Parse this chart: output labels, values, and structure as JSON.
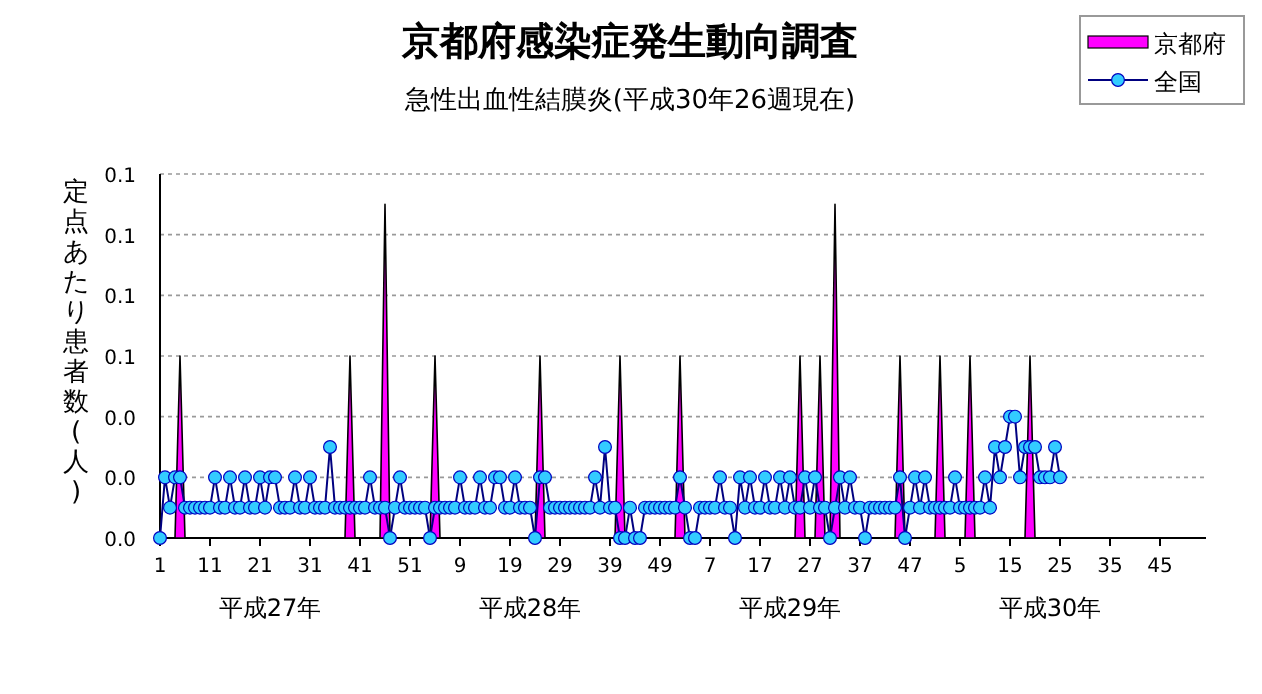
{
  "chart_data": {
    "type": "line",
    "title": "京都府感染症発生動向調査",
    "subtitle": "急性出血性結膜炎(平成30年26週現在)",
    "ylabel": "定点あたり患者数(人)",
    "annotations": [
      "平成27年",
      "平成28年",
      "平成29年",
      "平成30年"
    ],
    "categories": [
      "1",
      null,
      null,
      null,
      null,
      null,
      null,
      null,
      null,
      null,
      "11",
      null,
      null,
      null,
      null,
      null,
      null,
      null,
      null,
      null,
      "21",
      null,
      null,
      null,
      null,
      null,
      null,
      null,
      null,
      null,
      "31",
      null,
      null,
      null,
      null,
      null,
      null,
      null,
      null,
      null,
      "41",
      null,
      null,
      null,
      null,
      null,
      null,
      null,
      null,
      null,
      "51",
      null,
      null,
      null,
      null,
      null,
      null,
      null,
      null,
      null,
      "9",
      null,
      null,
      null,
      null,
      null,
      null,
      null,
      null,
      null,
      "19",
      null,
      null,
      null,
      null,
      null,
      null,
      null,
      null,
      null,
      "29",
      null,
      null,
      null,
      null,
      null,
      null,
      null,
      null,
      null,
      "39",
      null,
      null,
      null,
      null,
      null,
      null,
      null,
      null,
      null,
      "49",
      null,
      null,
      null,
      null,
      null,
      null,
      null,
      null,
      null,
      "7",
      null,
      null,
      null,
      null,
      null,
      null,
      null,
      null,
      null,
      "17",
      null,
      null,
      null,
      null,
      null,
      null,
      null,
      null,
      null,
      "27",
      null,
      null,
      null,
      null,
      null,
      null,
      null,
      null,
      null,
      "37",
      null,
      null,
      null,
      null,
      null,
      null,
      null,
      null,
      null,
      "47",
      null,
      null,
      null,
      null,
      null,
      null,
      null,
      null,
      null,
      "5",
      null,
      null,
      null,
      null,
      null,
      null,
      null,
      null,
      null,
      "15",
      null,
      null,
      null,
      null,
      null,
      null,
      null,
      null,
      null,
      "25",
      null,
      null,
      null,
      null,
      null,
      null,
      null,
      null,
      null,
      "35",
      null,
      null,
      null,
      null,
      null,
      null,
      null,
      null,
      null,
      "45",
      null,
      null,
      null,
      null,
      null,
      null,
      null
    ],
    "ylim": [
      0,
      0.12
    ],
    "yticks": [
      {
        "value": 0,
        "label": "0.0"
      },
      {
        "value": 0.02,
        "label": "0.0"
      },
      {
        "value": 0.04,
        "label": "0.0"
      },
      {
        "value": 0.06,
        "label": "0.1"
      },
      {
        "value": 0.08,
        "label": "0.1"
      },
      {
        "value": 0.1,
        "label": "0.1"
      },
      {
        "value": 0.12,
        "label": "0.1"
      }
    ],
    "grid": "y",
    "legend": "top right",
    "series": [
      {
        "name": "京都府",
        "type": "area",
        "color": "#ff00ff",
        "values": [
          0,
          0,
          0,
          0,
          0.06,
          0,
          0,
          0,
          0,
          0,
          0,
          0,
          0,
          0,
          0,
          0,
          0,
          0,
          0,
          0,
          0,
          0,
          0,
          0,
          0,
          0,
          0,
          0,
          0,
          0,
          0,
          0,
          0,
          0,
          0,
          0,
          0,
          0,
          0.06,
          0,
          0,
          0,
          0,
          0,
          0,
          0.11,
          0,
          0,
          0,
          0,
          0,
          0,
          0,
          0,
          0,
          0.06,
          0,
          0,
          0,
          0,
          0,
          0,
          0,
          0,
          0,
          0,
          0,
          0,
          0,
          0,
          0,
          0,
          0,
          0,
          0,
          0,
          0.06,
          0,
          0,
          0,
          0,
          0,
          0,
          0,
          0,
          0,
          0,
          0,
          0,
          0,
          0,
          0,
          0.06,
          0,
          0,
          0,
          0,
          0,
          0,
          0,
          0,
          0,
          0,
          0,
          0.06,
          0,
          0,
          0,
          0,
          0,
          0,
          0,
          0,
          0,
          0,
          0,
          0,
          0,
          0,
          0,
          0,
          0,
          0,
          0,
          0,
          0,
          0,
          0,
          0.06,
          0,
          0,
          0,
          0.06,
          0,
          0,
          0.11,
          0,
          0,
          0,
          0,
          0,
          0,
          0,
          0,
          0,
          0,
          0,
          0,
          0.06,
          0,
          0,
          0,
          0,
          0,
          0,
          0,
          0.06,
          0,
          0,
          0,
          0,
          0,
          0.06,
          0,
          0,
          0,
          0,
          0,
          0,
          0,
          0,
          0,
          0,
          0,
          0.06,
          0,
          0,
          0,
          0,
          0,
          0,
          null,
          null,
          null,
          null,
          null,
          null,
          null,
          null,
          null,
          null,
          null,
          null,
          null,
          null,
          null,
          null,
          null,
          null,
          null,
          null,
          null,
          null,
          null,
          null,
          null,
          null,
          null
        ]
      },
      {
        "name": "全国",
        "marker": "circle",
        "color": "#33ccff",
        "values": [
          0,
          0.02,
          0.01,
          0.02,
          0.02,
          0.01,
          0.01,
          0.01,
          0.01,
          0.01,
          0.01,
          0.02,
          0.01,
          0.01,
          0.02,
          0.01,
          0.01,
          0.02,
          0.01,
          0.01,
          0.02,
          0.01,
          0.02,
          0.02,
          0.01,
          0.01,
          0.01,
          0.02,
          0.01,
          0.01,
          0.02,
          0.01,
          0.01,
          0.01,
          0.03,
          0.01,
          0.01,
          0.01,
          0.01,
          0.01,
          0.01,
          0.01,
          0.02,
          0.01,
          0.01,
          0.01,
          0,
          0.01,
          0.02,
          0.01,
          0.01,
          0.01,
          0.01,
          0.01,
          0,
          0.01,
          0.01,
          0.01,
          0.01,
          0.01,
          0.02,
          0.01,
          0.01,
          0.01,
          0.02,
          0.01,
          0.01,
          0.02,
          0.02,
          0.01,
          0.01,
          0.02,
          0.01,
          0.01,
          0.01,
          0,
          0.02,
          0.02,
          0.01,
          0.01,
          0.01,
          0.01,
          0.01,
          0.01,
          0.01,
          0.01,
          0.01,
          0.02,
          0.01,
          0.03,
          0.01,
          0.01,
          0,
          0,
          0.01,
          0,
          0,
          0.01,
          0.01,
          0.01,
          0.01,
          0.01,
          0.01,
          0.01,
          0.02,
          0.01,
          0,
          0,
          0.01,
          0.01,
          0.01,
          0.01,
          0.02,
          0.01,
          0.01,
          0,
          0.02,
          0.01,
          0.02,
          0.01,
          0.01,
          0.02,
          0.01,
          0.01,
          0.02,
          0.01,
          0.02,
          0.01,
          0.01,
          0.02,
          0.01,
          0.02,
          0.01,
          0.01,
          0,
          0.01,
          0.02,
          0.01,
          0.02,
          0.01,
          0.01,
          0,
          0.01,
          0.01,
          0.01,
          0.01,
          0.01,
          0.01,
          0.02,
          0,
          0.01,
          0.02,
          0.01,
          0.02,
          0.01,
          0.01,
          0.01,
          0.01,
          0.01,
          0.02,
          0.01,
          0.01,
          0.01,
          0.01,
          0.01,
          0.02,
          0.01,
          0.03,
          0.02,
          0.03,
          0.04,
          0.04,
          0.02,
          0.03,
          0.03,
          0.03,
          0.02,
          0.02,
          0.02,
          0.03,
          0.02,
          null,
          null,
          null,
          null,
          null,
          null,
          null,
          null,
          null,
          null,
          null,
          null,
          null,
          null,
          null,
          null,
          null,
          null,
          null,
          null,
          null,
          null,
          null,
          null,
          null,
          null,
          null
        ]
      }
    ]
  }
}
